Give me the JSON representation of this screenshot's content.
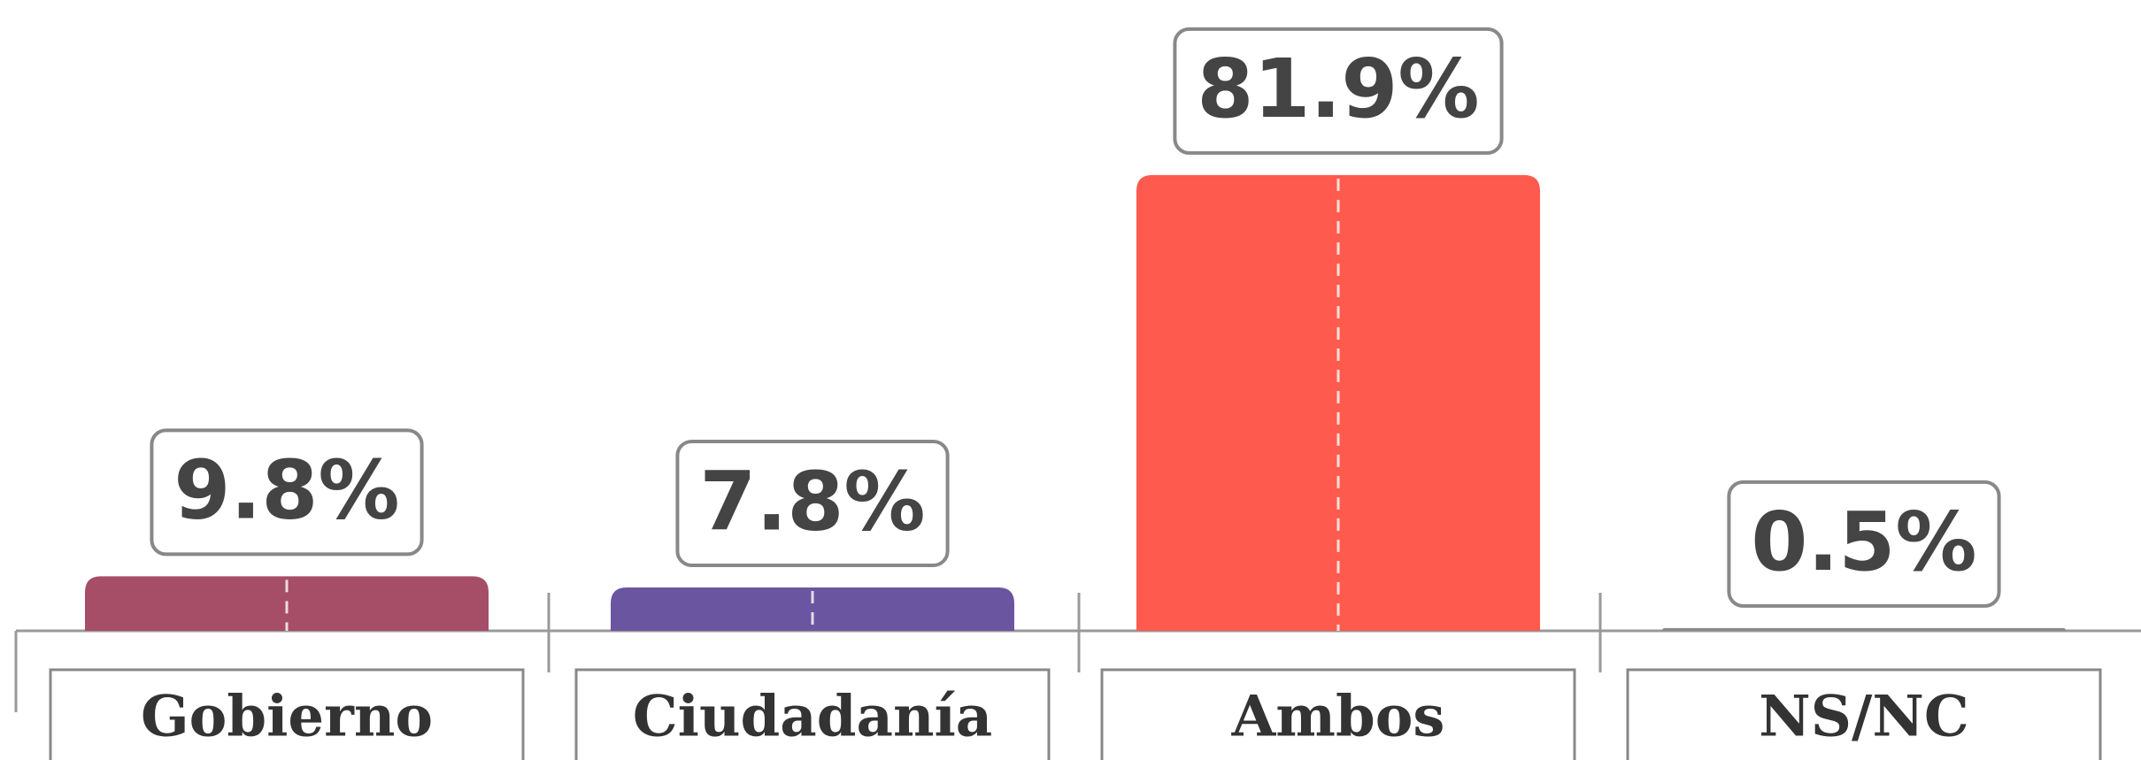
{
  "chart_data": {
    "type": "bar",
    "categories": [
      "Gobierno",
      "Ciudadanía",
      "Ambos",
      "NS/NC"
    ],
    "series": [
      {
        "values": [
          9.8,
          7.8,
          81.9,
          0.5
        ],
        "value_labels": [
          "9.8%",
          "7.8%",
          "81.9%",
          "0.5%"
        ],
        "colors": [
          "#a64d68",
          "#6a56a0",
          "#ff5a4e",
          "#8a8a8a"
        ]
      }
    ]
  }
}
